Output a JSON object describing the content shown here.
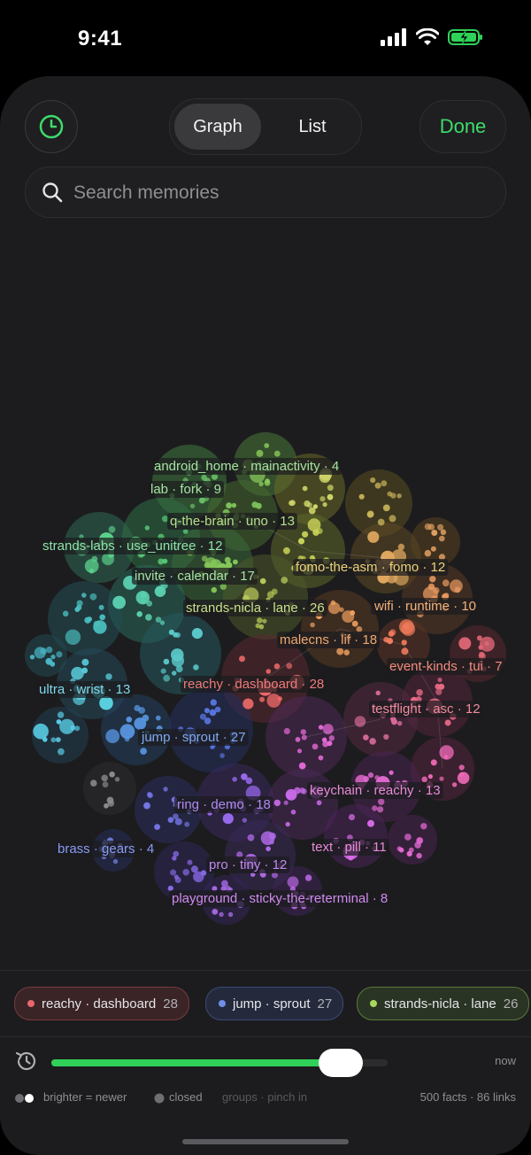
{
  "status": {
    "time": "9:41"
  },
  "header": {
    "tabs": [
      {
        "label": "Graph",
        "active": true
      },
      {
        "label": "List",
        "active": false
      }
    ],
    "done_label": "Done",
    "history_icon": "clock-icon"
  },
  "search": {
    "placeholder": "Search memories",
    "value": ""
  },
  "graph": {
    "clusters": [
      {
        "label": "android_home · mainactivity · 4",
        "color": "#a6e3a1"
      },
      {
        "label": "lab · fork · 9",
        "color": "#a6e3a1"
      },
      {
        "label": "q-the-brain · uno · 13",
        "color": "#b5e08a"
      },
      {
        "label": "strands-labs · use_unitree · 12",
        "color": "#8ee3a8"
      },
      {
        "label": "fomo-the-asm · fomo · 12",
        "color": "#ecd27a"
      },
      {
        "label": "invite · calendar · 17",
        "color": "#a6e3a1"
      },
      {
        "label": "strands-nicla · lane · 26",
        "color": "#c9e08a"
      },
      {
        "label": "wifi · runtime · 10",
        "color": "#f5b27a"
      },
      {
        "label": "malecns · lif · 18",
        "color": "#f0a870"
      },
      {
        "label": "event-kinds · tui · 7",
        "color": "#f28b7e"
      },
      {
        "label": "ultra · wrist · 13",
        "color": "#7fd8e8"
      },
      {
        "label": "reachy · dashboard · 28",
        "color": "#f07a7a"
      },
      {
        "label": "testflight · asc · 12",
        "color": "#f28b9e"
      },
      {
        "label": "jump · sprout · 27",
        "color": "#7fa8f0"
      },
      {
        "label": "keychain · reachy · 13",
        "color": "#e98ad8"
      },
      {
        "label": "ring · demo · 18",
        "color": "#b08af5"
      },
      {
        "label": "text · pill · 11",
        "color": "#e98ad8"
      },
      {
        "label": "brass · gears · 4",
        "color": "#8a9cf5"
      },
      {
        "label": "pro · tiny · 12",
        "color": "#c08af0"
      },
      {
        "label": "playground · sticky-the-reterminal · 8",
        "color": "#d08af0"
      }
    ]
  },
  "chips": [
    {
      "label": "reachy · dashboard",
      "count": "28",
      "color": "#e8676b"
    },
    {
      "label": "jump · sprout",
      "count": "27",
      "color": "#6f8fe8"
    },
    {
      "label": "strands-nicla · lane",
      "count": "26",
      "color": "#a6d95a"
    }
  ],
  "timeline": {
    "end_label": "now",
    "progress": 0.86
  },
  "footer": {
    "brighter_label": "brighter = newer",
    "closed_label": "closed",
    "groups_label": "groups · pinch in",
    "stats_label": "500 facts · 86 links"
  }
}
